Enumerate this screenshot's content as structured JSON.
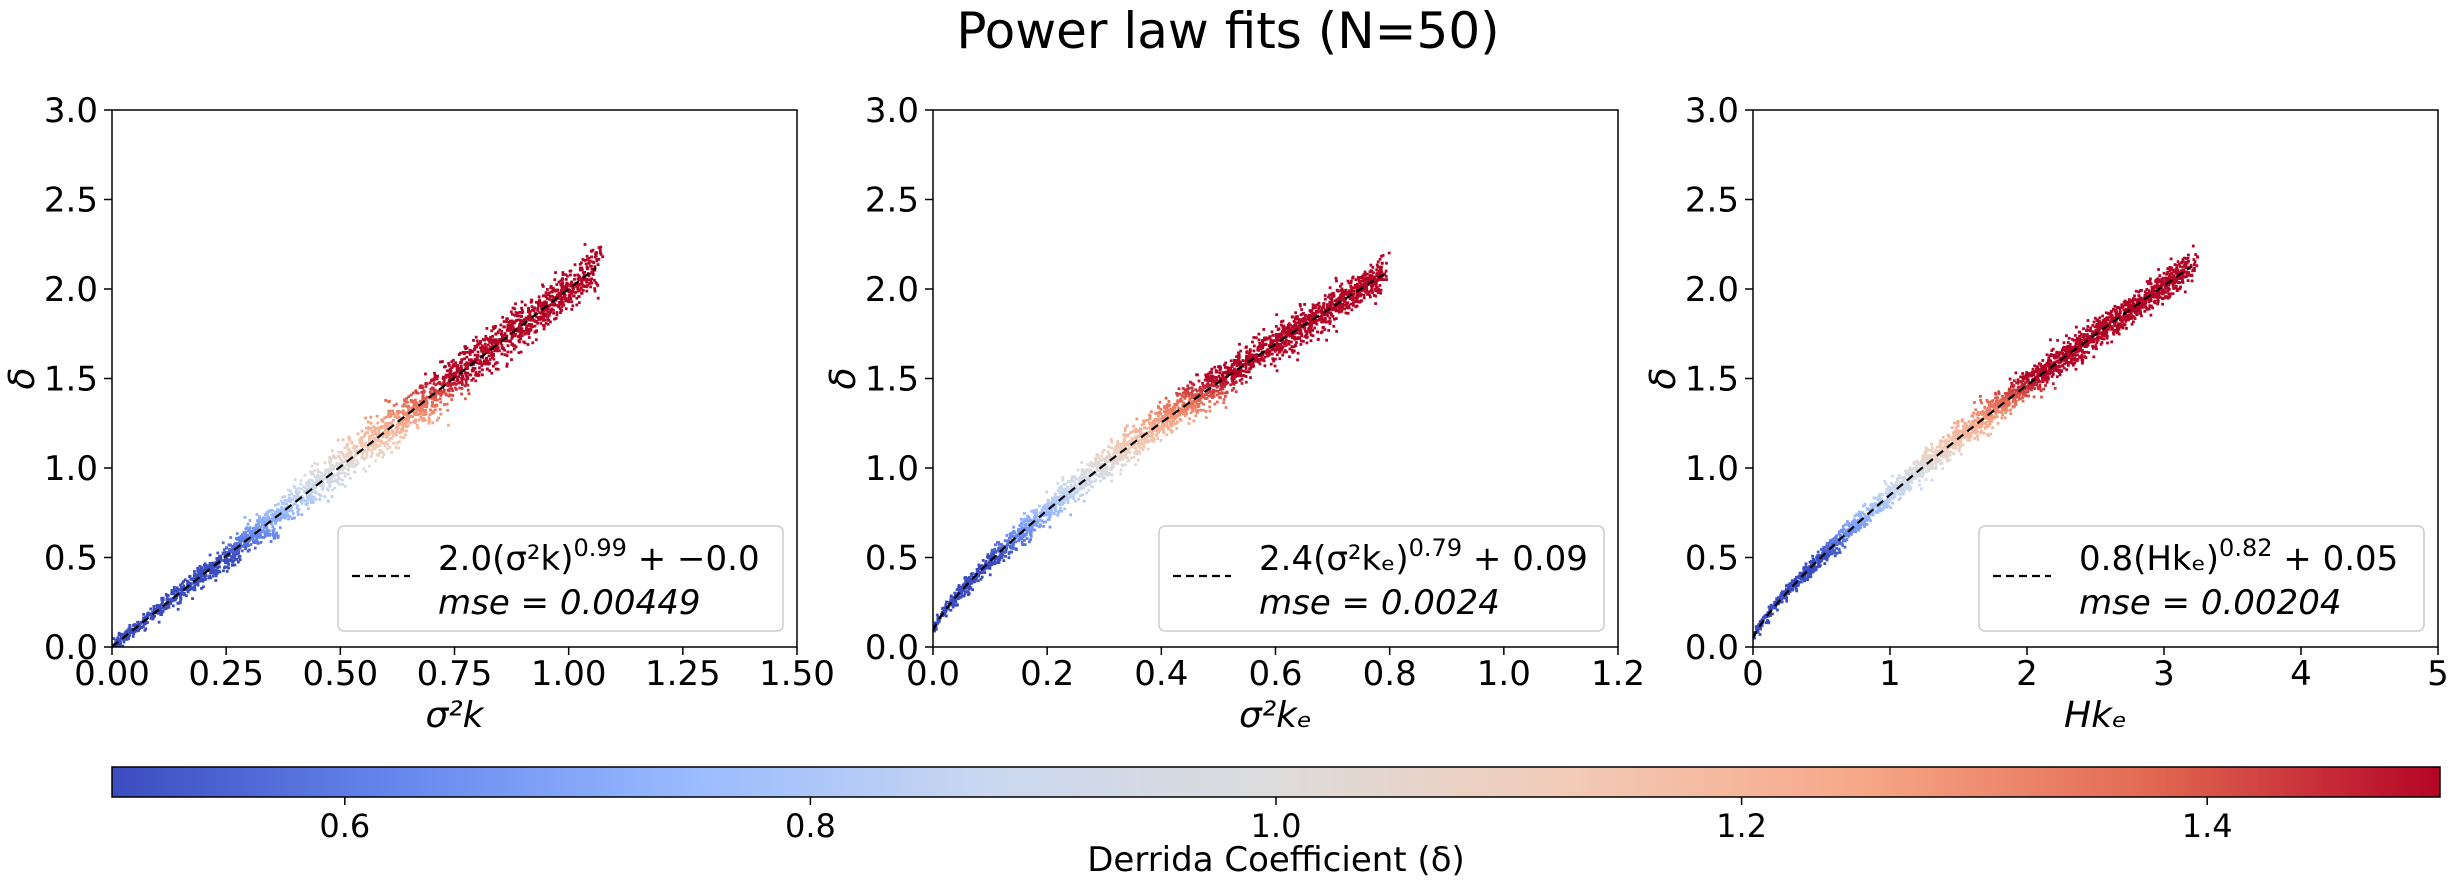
{
  "figure": {
    "title": "Power law fits (N=50)"
  },
  "chart_data": [
    {
      "type": "scatter",
      "xlabel": "σ²k",
      "ylabel": "δ",
      "xlim": [
        0,
        1.5
      ],
      "ylim": [
        0,
        3.0
      ],
      "xticks": [
        "0.00",
        "0.25",
        "0.50",
        "0.75",
        "1.00",
        "1.25",
        "1.50"
      ],
      "xtick_values": [
        0,
        0.25,
        0.5,
        0.75,
        1.0,
        1.25,
        1.5
      ],
      "yticks": [
        "0.0",
        "0.5",
        "1.0",
        "1.5",
        "2.0",
        "2.5",
        "3.0"
      ],
      "ytick_values": [
        0,
        0.5,
        1.0,
        1.5,
        2.0,
        2.5,
        3.0
      ],
      "fit": {
        "a": 2.0,
        "b": 0.99,
        "c": 0.0,
        "x_max": 1.06
      },
      "cloud": {
        "x_max": 1.06,
        "spread": 0.09
      },
      "legend": {
        "equation": "2.0(σ²k)^0.99 + −0.0",
        "mse": "mse = 0.00449",
        "eq_base": "2.0(σ²k)",
        "eq_exp": "0.99",
        "eq_tail": " + −0.0",
        "mse_text": "mse = 0.00449",
        "placement": "lower right"
      }
    },
    {
      "type": "scatter",
      "xlabel": "σ²kₑ",
      "ylabel": "δ",
      "xlim": [
        0,
        1.2
      ],
      "ylim": [
        0,
        3.0
      ],
      "xticks": [
        "0.0",
        "0.2",
        "0.4",
        "0.6",
        "0.8",
        "1.0",
        "1.2"
      ],
      "xtick_values": [
        0,
        0.2,
        0.4,
        0.6,
        0.8,
        1.0,
        1.2
      ],
      "yticks": [
        "0.0",
        "0.5",
        "1.0",
        "1.5",
        "2.0",
        "2.5",
        "3.0"
      ],
      "ytick_values": [
        0,
        0.5,
        1.0,
        1.5,
        2.0,
        2.5,
        3.0
      ],
      "fit": {
        "a": 2.4,
        "b": 0.79,
        "c": 0.09,
        "x_max": 0.79
      },
      "cloud": {
        "x_max": 0.79,
        "spread": 0.07
      },
      "legend": {
        "equation": "2.4(σ²kₑ)^0.79 + 0.09",
        "mse": "mse = 0.0024",
        "eq_base": "2.4(σ²kₑ)",
        "eq_exp": "0.79",
        "eq_tail": " + 0.09",
        "mse_text": "mse = 0.0024",
        "placement": "lower right"
      }
    },
    {
      "type": "scatter",
      "xlabel": "Hkₑ",
      "ylabel": "δ",
      "xlim": [
        0,
        5
      ],
      "ylim": [
        0,
        3.0
      ],
      "xticks": [
        "0",
        "1",
        "2",
        "3",
        "4",
        "5"
      ],
      "xtick_values": [
        0,
        1,
        2,
        3,
        4,
        5
      ],
      "yticks": [
        "0.0",
        "0.5",
        "1.0",
        "1.5",
        "2.0",
        "2.5",
        "3.0"
      ],
      "ytick_values": [
        0,
        0.5,
        1.0,
        1.5,
        2.0,
        2.5,
        3.0
      ],
      "fit": {
        "a": 0.8,
        "b": 0.82,
        "c": 0.05,
        "x_max": 3.2
      },
      "cloud": {
        "x_max": 3.2,
        "spread": 0.06
      },
      "legend": {
        "equation": "0.8(Hkₑ)^0.82 + 0.05",
        "mse": "mse = 0.00204",
        "eq_base": "0.8(Hkₑ)",
        "eq_exp": "0.82",
        "eq_tail": " + 0.05",
        "mse_text": "mse = 0.00204",
        "placement": "lower right"
      }
    }
  ],
  "colorbar": {
    "label": "Derrida Coefficient (δ)",
    "range": [
      0.5,
      1.5
    ],
    "ticks": [
      "0.6",
      "0.8",
      "1.0",
      "1.2",
      "1.4"
    ],
    "tick_values": [
      0.6,
      0.8,
      1.0,
      1.2,
      1.4
    ],
    "colormap": "coolwarm",
    "colors": [
      "#3b4cc0",
      "#6788ee",
      "#9abbff",
      "#c9d7f0",
      "#dddcdc",
      "#f2cbb7",
      "#f7a889",
      "#e26952",
      "#b40426"
    ]
  }
}
